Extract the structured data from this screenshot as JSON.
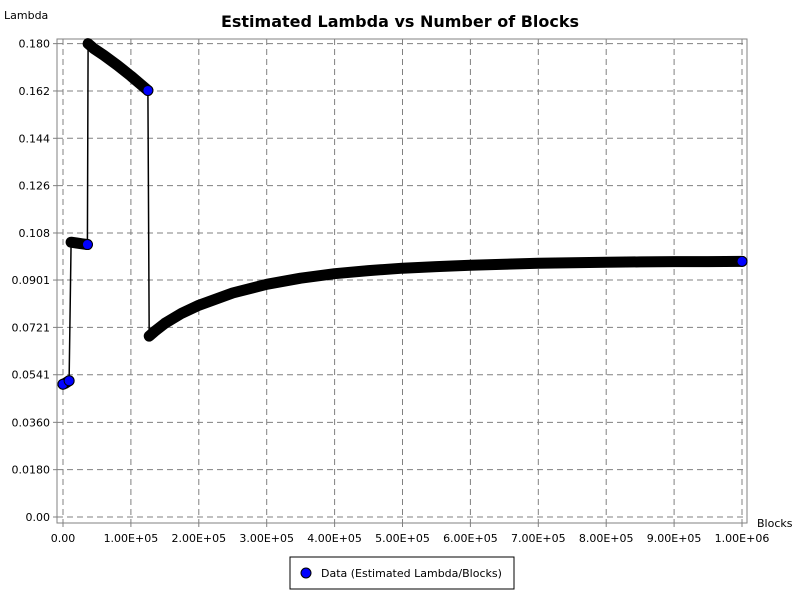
{
  "chart_data": {
    "type": "line",
    "title": "Estimated Lambda vs Number of Blocks",
    "xlabel": "Blocks",
    "ylabel": "Lambda",
    "xlim": [
      0,
      1000000
    ],
    "ylim": [
      0,
      0.181
    ],
    "grid": true,
    "legend_position": "bottom",
    "x_ticks": [
      {
        "value": 0,
        "label": "0.00"
      },
      {
        "value": 100000,
        "label": "1.00E+05"
      },
      {
        "value": 200000,
        "label": "2.00E+05"
      },
      {
        "value": 300000,
        "label": "3.00E+05"
      },
      {
        "value": 400000,
        "label": "4.00E+05"
      },
      {
        "value": 500000,
        "label": "5.00E+05"
      },
      {
        "value": 600000,
        "label": "6.00E+05"
      },
      {
        "value": 700000,
        "label": "7.00E+05"
      },
      {
        "value": 800000,
        "label": "8.00E+05"
      },
      {
        "value": 900000,
        "label": "9.00E+05"
      },
      {
        "value": 1000000,
        "label": "1.00E+06"
      }
    ],
    "y_ticks": [
      {
        "value": 0.0,
        "label": "0.00"
      },
      {
        "value": 0.018,
        "label": "0.0180"
      },
      {
        "value": 0.036,
        "label": "0.0360"
      },
      {
        "value": 0.0541,
        "label": "0.0541"
      },
      {
        "value": 0.0721,
        "label": "0.0721"
      },
      {
        "value": 0.0901,
        "label": "0.0901"
      },
      {
        "value": 0.108,
        "label": "0.108"
      },
      {
        "value": 0.126,
        "label": "0.126"
      },
      {
        "value": 0.144,
        "label": "0.144"
      },
      {
        "value": 0.162,
        "label": "0.162"
      },
      {
        "value": 0.18,
        "label": "0.180"
      }
    ],
    "series": [
      {
        "name": "Data (Estimated Lambda/Blocks)",
        "marker_color": "#0000ff",
        "line_color": "#000000",
        "x": [
          0,
          3000,
          6000,
          9000,
          12000,
          20000,
          28000,
          36000,
          37000,
          45000,
          60000,
          80000,
          100000,
          125000,
          127000,
          135000,
          150000,
          175000,
          200000,
          250000,
          300000,
          350000,
          400000,
          450000,
          500000,
          550000,
          600000,
          650000,
          700000,
          750000,
          800000,
          850000,
          900000,
          950000,
          1000000
        ],
        "y": [
          0.0505,
          0.0508,
          0.0513,
          0.0518,
          0.1045,
          0.1042,
          0.1039,
          0.1036,
          0.18,
          0.1782,
          0.1756,
          0.1718,
          0.1677,
          0.1622,
          0.0688,
          0.0706,
          0.0736,
          0.0775,
          0.0805,
          0.0852,
          0.0885,
          0.0908,
          0.0925,
          0.0937,
          0.0946,
          0.0952,
          0.0957,
          0.0961,
          0.0965,
          0.0967,
          0.0969,
          0.097,
          0.0971,
          0.0971,
          0.0972
        ]
      }
    ],
    "highlight_points": [
      {
        "x": 0,
        "y": 0.0505
      },
      {
        "x": 9000,
        "y": 0.0518
      },
      {
        "x": 36000,
        "y": 0.1036
      },
      {
        "x": 125000,
        "y": 0.1622
      },
      {
        "x": 1000000,
        "y": 0.0972
      }
    ]
  }
}
